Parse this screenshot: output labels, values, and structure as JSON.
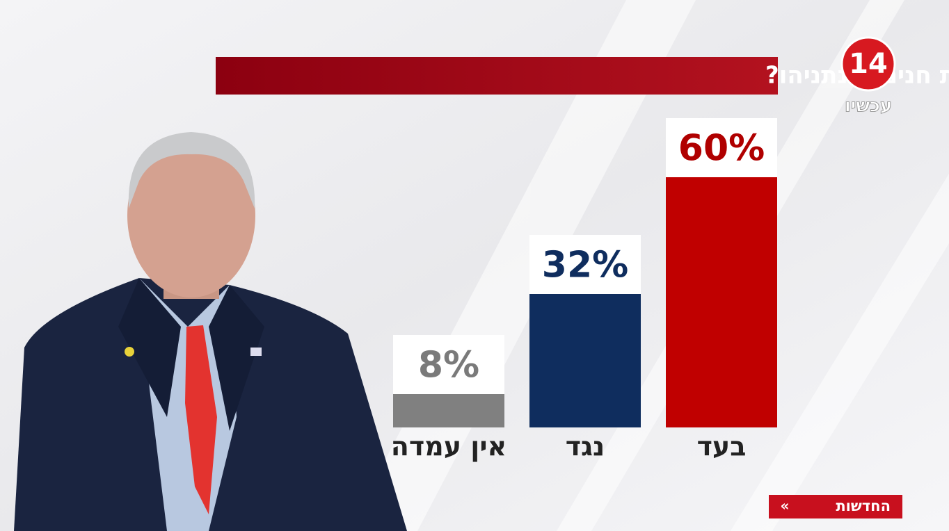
{
  "chart_data": {
    "type": "bar",
    "title": "האם אתם בעד או נגד הענקת חנינה לנתניהו?",
    "logo": "14",
    "logo_caption": "עכשיו",
    "footer": "החדשות",
    "categories": [
      "בעד",
      "נגד",
      "אין עמדה"
    ],
    "values": [
      60,
      32,
      8
    ],
    "value_labels": [
      "60%",
      "32%",
      "8%"
    ],
    "colors": [
      "#c00000",
      "#0f2d5e",
      "#808080"
    ],
    "label_colors": [
      "#b00000",
      "#0f2d5e",
      "#7a7a7a"
    ]
  }
}
